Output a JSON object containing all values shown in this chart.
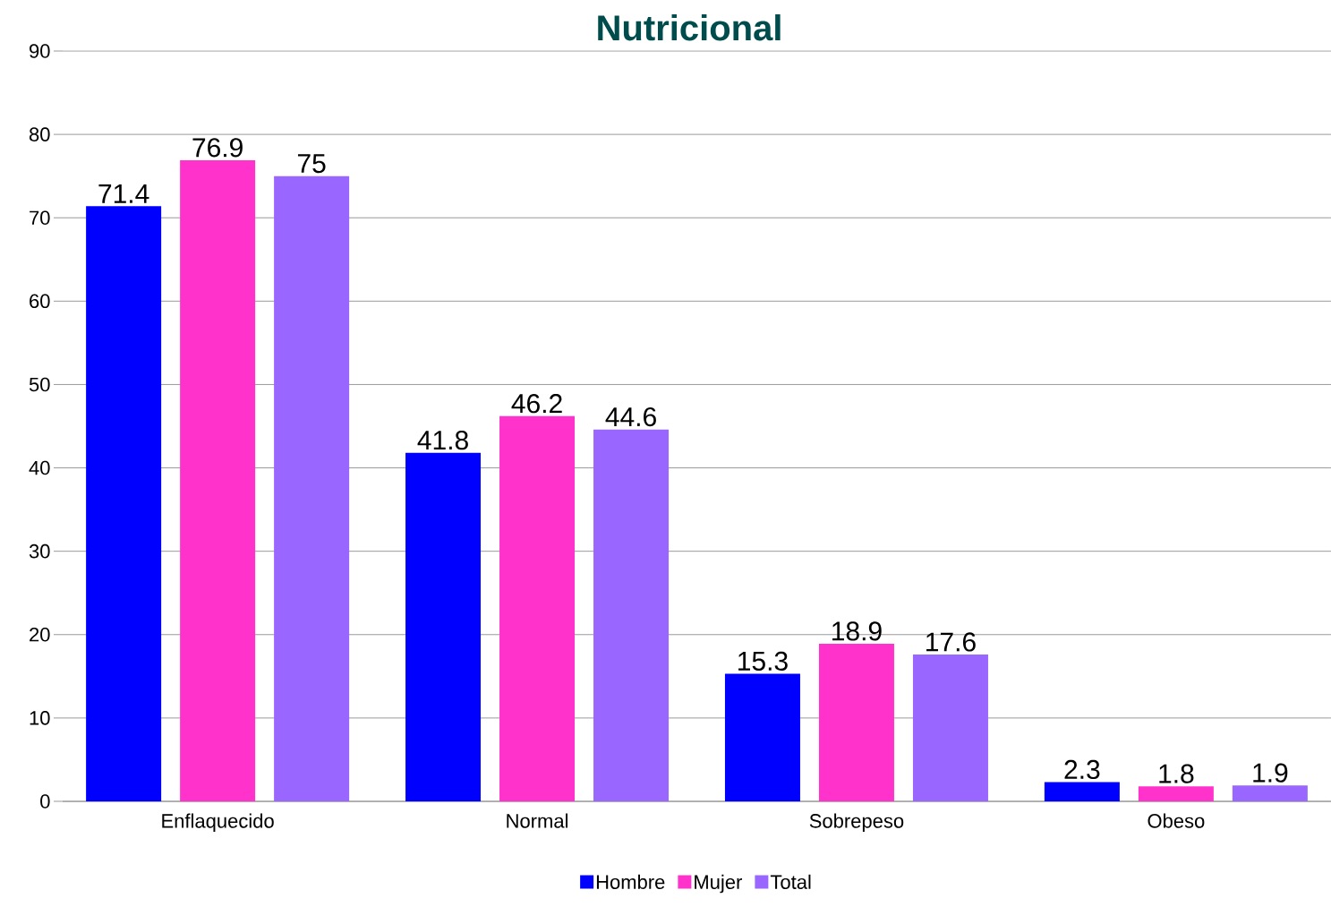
{
  "chart_data": {
    "type": "bar",
    "title": "Nutricional",
    "categories": [
      "Enflaquecido",
      "Normal",
      "Sobrepeso",
      "Obeso"
    ],
    "series": [
      {
        "name": "Hombre",
        "color": "#0000ff",
        "values": [
          71.4,
          41.8,
          15.3,
          2.3
        ]
      },
      {
        "name": "Mujer",
        "color": "#ff33cc",
        "values": [
          76.9,
          46.2,
          18.9,
          1.8
        ]
      },
      {
        "name": "Total",
        "color": "#9966ff",
        "values": [
          75,
          44.6,
          17.6,
          1.9
        ]
      }
    ],
    "ylim": [
      0,
      90
    ],
    "yticks": [
      0,
      10,
      20,
      30,
      40,
      50,
      60,
      70,
      80,
      90
    ],
    "grid": "y",
    "legend": "bottom",
    "data_labels": true
  }
}
